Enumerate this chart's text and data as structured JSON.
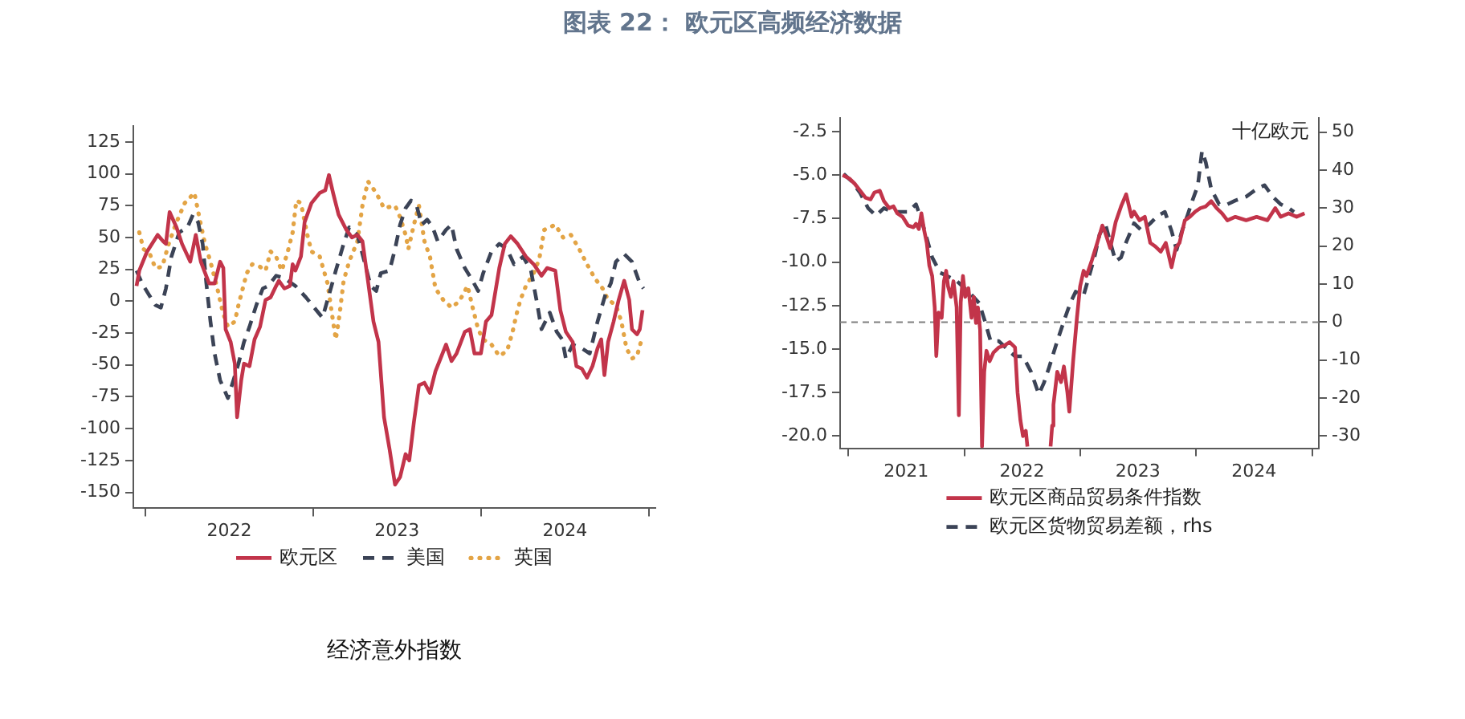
{
  "chart_data": [
    {
      "type": "line",
      "title": "图表 22： 欧元区高频经济数据",
      "subtitle": "经济意外指数",
      "xlim": [
        "2021-12-05",
        "2025-01-15"
      ],
      "xticks": [
        {
          "value": "2022-01-01",
          "label": null
        },
        {
          "value": "2022-07-02",
          "label": "2022"
        },
        {
          "value": "2023-01-01",
          "label": null
        },
        {
          "value": "2023-07-02",
          "label": "2023"
        },
        {
          "value": "2024-01-01",
          "label": null
        },
        {
          "value": "2024-07-02",
          "label": "2024"
        },
        {
          "value": "2025-01-01",
          "label": null
        }
      ],
      "ylim": [
        -162.5,
        137.5
      ],
      "yticks": [
        -150,
        -125,
        -100,
        -75,
        -50,
        -25,
        0,
        25,
        50,
        75,
        100,
        125
      ],
      "legend": "bottom",
      "series": [
        {
          "name": "欧元区",
          "color": "#c2344a",
          "line_style": "solid",
          "x": [
            "2021-12-12",
            "2021-12-18",
            "2022-01-04",
            "2022-01-27",
            "2022-02-08",
            "2022-02-14",
            "2022-02-22",
            "2022-03-09",
            "2022-03-21",
            "2022-04-08",
            "2022-04-20",
            "2022-05-01",
            "2022-05-19",
            "2022-05-31",
            "2022-06-12",
            "2022-06-19",
            "2022-06-24",
            "2022-07-05",
            "2022-07-14",
            "2022-07-19",
            "2022-07-28",
            "2022-08-03",
            "2022-08-15",
            "2022-08-26",
            "2022-09-07",
            "2022-09-19",
            "2022-09-30",
            "2022-10-12",
            "2022-10-18",
            "2022-10-30",
            "2022-11-11",
            "2022-11-17",
            "2022-11-23",
            "2022-12-05",
            "2022-12-13",
            "2022-12-28",
            "2023-01-15",
            "2023-01-27",
            "2023-02-04",
            "2023-02-13",
            "2023-02-25",
            "2023-03-14",
            "2023-03-26",
            "2023-04-07",
            "2023-04-18",
            "2023-04-30",
            "2023-05-12",
            "2023-05-23",
            "2023-06-04",
            "2023-06-16",
            "2023-06-28",
            "2023-07-09",
            "2023-07-21",
            "2023-07-29",
            "2023-08-08",
            "2023-08-19",
            "2023-08-31",
            "2023-09-12",
            "2023-09-24",
            "2023-10-05",
            "2023-10-17",
            "2023-10-29",
            "2023-11-09",
            "2023-11-27",
            "2023-12-08",
            "2023-12-18",
            "2024-01-01",
            "2024-01-12",
            "2024-01-24",
            "2024-02-10",
            "2024-02-22",
            "2024-03-06",
            "2024-03-21",
            "2024-04-08",
            "2024-04-25",
            "2024-05-12",
            "2024-05-24",
            "2024-06-11",
            "2024-06-22",
            "2024-07-04",
            "2024-07-19",
            "2024-07-27",
            "2024-08-08",
            "2024-08-19",
            "2024-08-31",
            "2024-09-11",
            "2024-09-19",
            "2024-09-26",
            "2024-10-04",
            "2024-10-16",
            "2024-10-27",
            "2024-11-08",
            "2024-11-19",
            "2024-11-25",
            "2024-12-06",
            "2024-12-12",
            "2024-12-18"
          ],
          "values": [
            12,
            24,
            39,
            52,
            47,
            45,
            70,
            58,
            45,
            31,
            52,
            31,
            14,
            14,
            31,
            26,
            -22,
            -32,
            -49,
            -91,
            -62,
            -49,
            -51,
            -30,
            -20,
            1,
            3,
            12,
            16,
            10,
            12,
            29,
            24,
            35,
            62,
            77,
            85,
            87,
            99,
            85,
            68,
            56,
            50,
            52,
            47,
            16,
            -16,
            -32,
            -91,
            -116,
            -144,
            -138,
            -120,
            -125,
            -95,
            -66,
            -64,
            -72,
            -55,
            -45,
            -34,
            -47,
            -41,
            -24,
            -22,
            -41,
            -41,
            -16,
            -11,
            26,
            45,
            51,
            45,
            35,
            29,
            20,
            26,
            24,
            -7,
            -24,
            -32,
            -51,
            -53,
            -60,
            -51,
            -37,
            -30,
            -58,
            -32,
            -16,
            1,
            16,
            1,
            -22,
            -26,
            -22,
            -7
          ]
        },
        {
          "name": "美国",
          "color": "#3b4356",
          "line_style": "dashed",
          "x": [
            "2021-12-12",
            "2021-12-24",
            "2022-01-08",
            "2022-01-22",
            "2022-02-03",
            "2022-02-14",
            "2022-02-26",
            "2022-03-15",
            "2022-04-02",
            "2022-04-14",
            "2022-04-25",
            "2022-05-05",
            "2022-05-13",
            "2022-05-22",
            "2022-05-31",
            "2022-06-12",
            "2022-06-29",
            "2022-07-11",
            "2022-07-22",
            "2022-08-03",
            "2022-08-15",
            "2022-08-30",
            "2022-09-13",
            "2022-09-25",
            "2022-10-12",
            "2022-10-30",
            "2022-11-23",
            "2022-12-16",
            "2023-01-03",
            "2023-01-21",
            "2023-02-01",
            "2023-02-19",
            "2023-03-08",
            "2023-03-20",
            "2023-04-07",
            "2023-04-18",
            "2023-05-06",
            "2023-05-18",
            "2023-05-28",
            "2023-06-16",
            "2023-06-28",
            "2023-07-09",
            "2023-07-21",
            "2023-08-02",
            "2023-08-14",
            "2023-08-25",
            "2023-09-06",
            "2023-09-18",
            "2023-09-29",
            "2023-10-17",
            "2023-10-29",
            "2023-11-09",
            "2023-11-27",
            "2023-12-14",
            "2023-12-26",
            "2024-01-06",
            "2024-01-24",
            "2024-02-10",
            "2024-02-27",
            "2024-03-13",
            "2024-04-02",
            "2024-04-19",
            "2024-05-01",
            "2024-05-12",
            "2024-05-30",
            "2024-06-14",
            "2024-06-26",
            "2024-07-04",
            "2024-07-19",
            "2024-08-08",
            "2024-08-25",
            "2024-09-11",
            "2024-09-28",
            "2024-10-10",
            "2024-10-21",
            "2024-11-08",
            "2024-11-25",
            "2024-12-12",
            "2024-12-20"
          ],
          "values": [
            24,
            14,
            5,
            -3,
            -5,
            10,
            35,
            54,
            58,
            68,
            62,
            45,
            14,
            -16,
            -41,
            -62,
            -76,
            -62,
            -49,
            -32,
            -20,
            -3,
            10,
            12,
            20,
            18,
            12,
            3,
            -5,
            -13,
            1,
            24,
            45,
            58,
            52,
            37,
            12,
            8,
            22,
            24,
            41,
            60,
            73,
            79,
            75,
            60,
            64,
            58,
            47,
            56,
            60,
            41,
            26,
            16,
            8,
            22,
            39,
            45,
            41,
            29,
            35,
            24,
            1,
            -22,
            -9,
            -24,
            -30,
            -45,
            -34,
            -37,
            -41,
            -16,
            5,
            14,
            31,
            37,
            31,
            14,
            10
          ]
        },
        {
          "name": "英国",
          "color": "#e3a445",
          "line_style": "dotted",
          "x": [
            "2021-12-18",
            "2021-12-27",
            "2022-01-10",
            "2022-01-22",
            "2022-02-06",
            "2022-02-20",
            "2022-03-09",
            "2022-03-27",
            "2022-04-17",
            "2022-05-01",
            "2022-05-10",
            "2022-05-22",
            "2022-06-06",
            "2022-06-18",
            "2022-06-29",
            "2022-07-14",
            "2022-07-22",
            "2022-08-09",
            "2022-08-21",
            "2022-09-07",
            "2022-09-19",
            "2022-09-30",
            "2022-10-12",
            "2022-10-24",
            "2022-11-05",
            "2022-11-17",
            "2022-11-25",
            "2022-12-05",
            "2022-12-19",
            "2022-12-28",
            "2023-01-15",
            "2023-02-01",
            "2023-02-11",
            "2023-02-19",
            "2023-02-27",
            "2023-03-08",
            "2023-03-20",
            "2023-04-07",
            "2023-04-18",
            "2023-04-30",
            "2023-05-18",
            "2023-06-04",
            "2023-06-28",
            "2023-07-09",
            "2023-07-21",
            "2023-07-27",
            "2023-08-08",
            "2023-08-19",
            "2023-08-31",
            "2023-09-12",
            "2023-09-24",
            "2023-10-11",
            "2023-10-29",
            "2023-11-15",
            "2023-12-03",
            "2023-12-14",
            "2023-12-26",
            "2024-01-06",
            "2024-01-24",
            "2024-02-10",
            "2024-02-27",
            "2024-03-10",
            "2024-03-18",
            "2024-03-27",
            "2024-04-08",
            "2024-04-25",
            "2024-05-07",
            "2024-05-18",
            "2024-06-11",
            "2024-06-28",
            "2024-07-15",
            "2024-08-02",
            "2024-08-19",
            "2024-09-05",
            "2024-09-22",
            "2024-10-04",
            "2024-10-21",
            "2024-11-02",
            "2024-11-13",
            "2024-11-25",
            "2024-12-06",
            "2024-12-16"
          ],
          "values": [
            54,
            41,
            37,
            26,
            27,
            45,
            62,
            77,
            85,
            60,
            45,
            31,
            10,
            -9,
            -20,
            -16,
            -3,
            22,
            29,
            27,
            24,
            39,
            35,
            24,
            37,
            54,
            79,
            77,
            52,
            39,
            35,
            14,
            -11,
            -30,
            -11,
            16,
            31,
            47,
            75,
            94,
            85,
            73,
            75,
            66,
            52,
            41,
            60,
            75,
            47,
            35,
            10,
            1,
            -5,
            0,
            12,
            -5,
            -22,
            -30,
            -34,
            -43,
            -39,
            -24,
            -11,
            1,
            12,
            22,
            33,
            56,
            60,
            50,
            52,
            41,
            29,
            18,
            10,
            1,
            -3,
            -16,
            -37,
            -45,
            -43,
            -30
          ]
        }
      ]
    },
    {
      "type": "line",
      "y2label": "十亿欧元",
      "xlim": [
        "2020-12-06",
        "2025-01-22"
      ],
      "xticks": [
        {
          "value": "2021-01-01",
          "label": null
        },
        {
          "value": "2021-07-02",
          "label": "2021"
        },
        {
          "value": "2022-01-01",
          "label": null
        },
        {
          "value": "2022-07-02",
          "label": "2022"
        },
        {
          "value": "2023-01-01",
          "label": null
        },
        {
          "value": "2023-07-02",
          "label": "2023"
        },
        {
          "value": "2024-01-01",
          "label": null
        },
        {
          "value": "2024-07-02",
          "label": "2024"
        },
        {
          "value": "2025-01-01",
          "label": null
        }
      ],
      "ylim": [
        -20.7,
        -1.7
      ],
      "yticks": [
        {
          "value": -20,
          "label": "-20.0"
        },
        -17.5,
        {
          "value": -15,
          "label": "-15.0"
        },
        -12.5,
        {
          "value": -10,
          "label": "-10.0"
        },
        -7.5,
        {
          "value": -5,
          "label": "-5.0"
        },
        -2.5
      ],
      "y2lim": [
        -33.2,
        53.8
      ],
      "y2ticks": [
        -30,
        -20,
        -10,
        0,
        10,
        20,
        30,
        40,
        50
      ],
      "ref_lines": [
        {
          "axis": "y2",
          "value": 0,
          "color": "#7f7f7f",
          "line_style": "dashed"
        }
      ],
      "legend": "bottom",
      "series": [
        {
          "name": "欧元区商品贸易条件指数",
          "color": "#c2344a",
          "line_style": "solid",
          "x": [
            "2020-12-14",
            "2021-01-04",
            "2021-01-21",
            "2021-02-07",
            "2021-02-24",
            "2021-03-12",
            "2021-03-24",
            "2021-04-10",
            "2021-04-23",
            "2021-05-10",
            "2021-05-23",
            "2021-06-04",
            "2021-06-21",
            "2021-07-08",
            "2021-07-25",
            "2021-08-02",
            "2021-08-11",
            "2021-08-19",
            "2021-08-28",
            "2021-09-05",
            "2021-09-13",
            "2021-09-22",
            "2021-09-30",
            "2021-10-05",
            "2021-10-12",
            "2021-10-22",
            "2021-10-29",
            "2021-11-05",
            "2021-11-11",
            "2021-11-20",
            "2021-11-28",
            "2021-12-08",
            "2021-12-15",
            "2021-12-21",
            "2021-12-28",
            "2022-01-04",
            "2022-01-14",
            "2022-01-24",
            "2022-01-31",
            "2022-02-07",
            "2022-02-13",
            "2022-02-20",
            "2022-02-26",
            "2022-03-05",
            "2022-03-12",
            "2022-03-22",
            "2022-04-03",
            "2022-04-20",
            "2022-05-07",
            "2022-05-24",
            "2022-06-10",
            "2022-06-18",
            "2022-06-27",
            "2022-07-05",
            "2022-07-14",
            "2022-07-19",
            "2022-08-20",
            "2022-09-30",
            "2022-10-05",
            "2022-10-09",
            "2022-10-21",
            "2022-11-02",
            "2022-11-11",
            "2022-11-22",
            "2022-11-28",
            "2022-12-10",
            "2022-12-22",
            "2023-01-01",
            "2023-01-12",
            "2023-01-21",
            "2023-02-07",
            "2023-02-24",
            "2023-03-12",
            "2023-03-21",
            "2023-04-06",
            "2023-04-23",
            "2023-05-10",
            "2023-05-26",
            "2023-06-12",
            "2023-06-20",
            "2023-07-07",
            "2023-07-24",
            "2023-08-10",
            "2023-08-26",
            "2023-09-12",
            "2023-09-28",
            "2023-10-16",
            "2023-10-29",
            "2023-11-10",
            "2023-11-27",
            "2023-12-13",
            "2023-12-30",
            "2024-01-15",
            "2024-02-01",
            "2024-02-18",
            "2024-03-06",
            "2024-03-23",
            "2024-04-09",
            "2024-05-04",
            "2024-06-07",
            "2024-07-10",
            "2024-08-13",
            "2024-09-07",
            "2024-09-24",
            "2024-10-19",
            "2024-11-13",
            "2024-12-08"
          ],
          "values": [
            -5.0,
            -5.2,
            -5.5,
            -5.9,
            -6.3,
            -6.4,
            -6.0,
            -5.9,
            -6.5,
            -6.9,
            -6.8,
            -7.2,
            -7.4,
            -7.9,
            -8.0,
            -7.8,
            -8.1,
            -7.2,
            -8.2,
            -8.9,
            -10.2,
            -10.8,
            -12.6,
            -15.4,
            -12.9,
            -13.2,
            -11.1,
            -10.5,
            -11.4,
            -12.0,
            -11.1,
            -12.6,
            -18.8,
            -12.3,
            -10.8,
            -12.0,
            -11.5,
            -13.2,
            -12.0,
            -13.5,
            -12.6,
            -13.9,
            -20.6,
            -16.3,
            -15.1,
            -15.7,
            -15.2,
            -14.9,
            -14.8,
            -14.6,
            -14.9,
            -17.5,
            -19.1,
            -20.0,
            -19.7,
            -20.6,
            null,
            -20.6,
            -19.4,
            -18.2,
            -16.3,
            -16.9,
            -16.0,
            -17.5,
            -18.6,
            -15.7,
            -13.2,
            -11.4,
            -10.5,
            -10.8,
            -9.9,
            -8.9,
            -7.9,
            -8.3,
            -9.2,
            -7.7,
            -6.8,
            -6.1,
            -7.4,
            -7.1,
            -7.6,
            -7.4,
            -8.9,
            -9.1,
            -9.4,
            -8.9,
            -10.3,
            -9.2,
            -8.9,
            -7.6,
            -7.4,
            -7.1,
            -6.9,
            -6.8,
            -6.5,
            -6.9,
            -7.2,
            -7.6,
            -7.4,
            -7.6,
            -7.4,
            -7.6,
            -6.9,
            -7.4,
            -7.2,
            -7.4,
            -7.2
          ]
        },
        {
          "name": "欧元区货物贸易差额，rhs",
          "color": "#3b4356",
          "line_style": "dashed",
          "axis": "y2",
          "x": [
            "2020-12-17",
            "2021-01-12",
            "2021-02-07",
            "2021-03-04",
            "2021-03-29",
            "2021-04-23",
            "2021-05-18",
            "2021-06-13",
            "2021-07-08",
            "2021-08-02",
            "2021-08-19",
            "2021-09-05",
            "2021-09-22",
            "2021-10-17",
            "2021-11-11",
            "2021-12-06",
            "2022-01-01",
            "2022-01-26",
            "2022-02-17",
            "2022-03-08",
            "2022-03-25",
            "2022-04-20",
            "2022-05-15",
            "2022-06-10",
            "2022-07-05",
            "2022-07-30",
            "2022-08-24",
            "2022-09-09",
            "2022-09-25",
            "2022-10-21",
            "2022-11-14",
            "2022-12-01",
            "2022-12-18",
            "2023-01-12",
            "2023-01-29",
            "2023-02-15",
            "2023-03-03",
            "2023-03-21",
            "2023-04-06",
            "2023-04-23",
            "2023-05-10",
            "2023-05-26",
            "2023-06-20",
            "2023-07-15",
            "2023-08-10",
            "2023-09-03",
            "2023-09-25",
            "2023-10-16",
            "2023-11-01",
            "2023-11-18",
            "2023-12-05",
            "2023-12-21",
            "2024-01-07",
            "2024-01-20",
            "2024-02-01",
            "2024-02-18",
            "2024-03-14",
            "2024-04-09",
            "2024-05-04",
            "2024-06-07",
            "2024-07-10",
            "2024-08-04",
            "2024-08-30",
            "2024-09-24",
            "2024-10-19",
            "2024-11-05"
          ],
          "values": [
            39,
            37,
            34,
            30,
            28,
            30,
            29,
            29,
            29,
            31,
            27,
            22,
            17,
            13,
            12,
            11,
            9,
            7,
            5,
            0,
            -5,
            -5,
            -7,
            -9,
            -9,
            -13,
            -19,
            -16,
            -12,
            -5,
            1,
            5,
            8,
            7,
            12,
            17,
            23,
            26,
            21,
            16,
            17,
            21,
            26,
            24,
            26,
            28,
            29,
            24,
            19,
            24,
            28,
            32,
            36,
            45,
            42,
            35,
            31,
            31,
            32,
            33,
            35,
            36,
            33,
            31,
            30,
            29
          ]
        }
      ]
    }
  ]
}
